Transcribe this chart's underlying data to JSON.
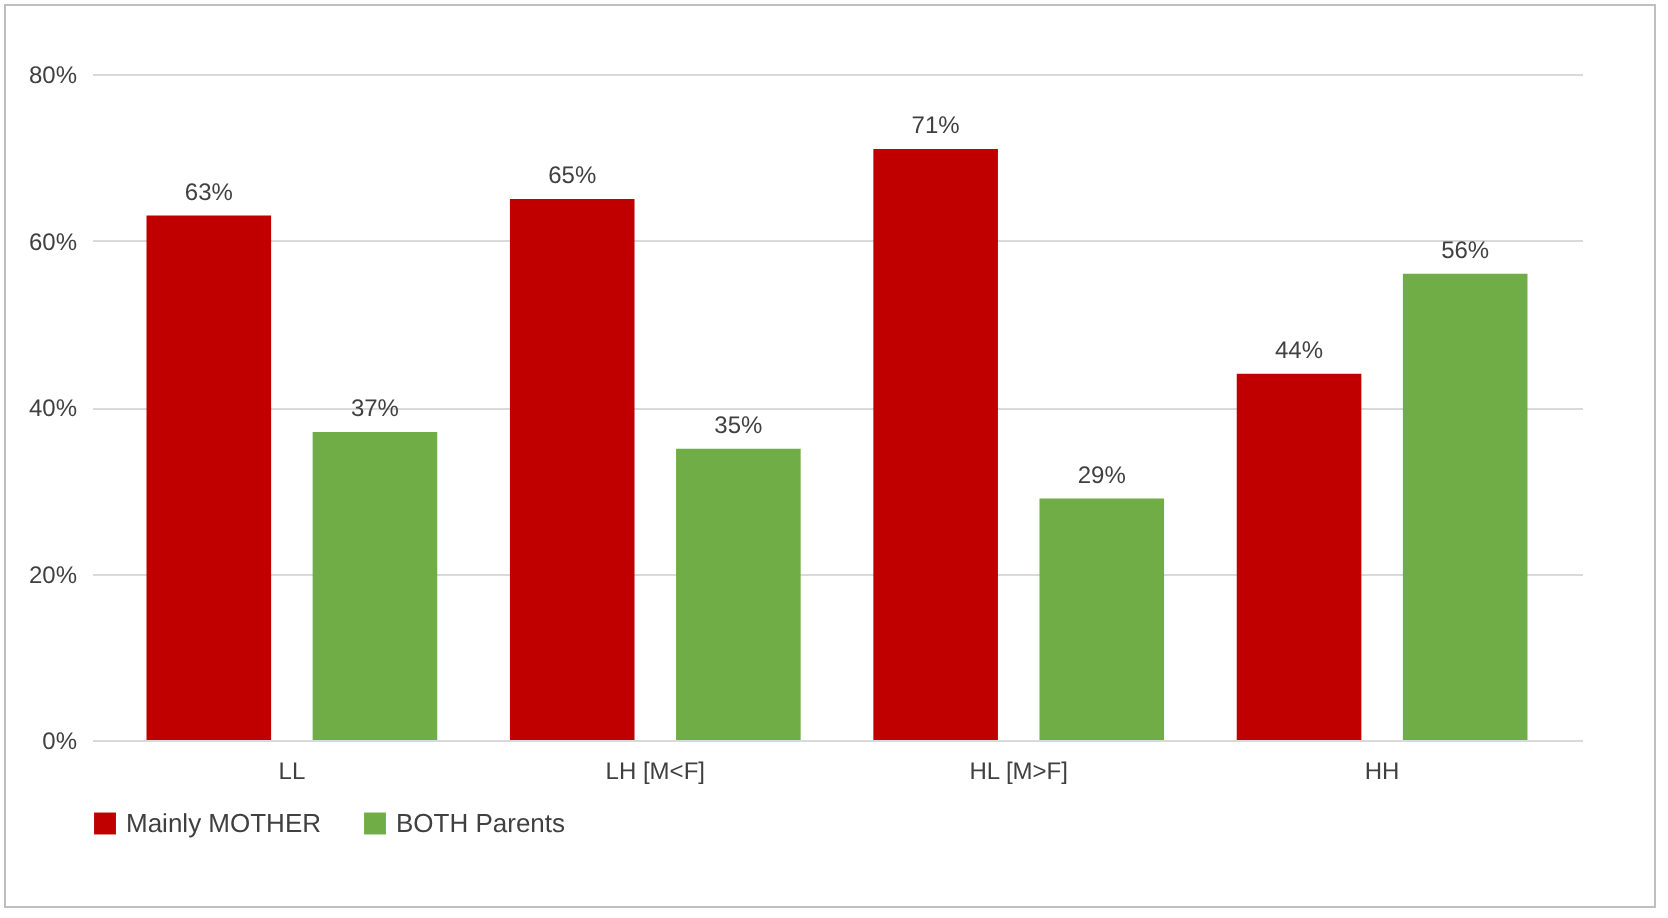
{
  "chart_data": {
    "type": "bar",
    "categories": [
      "LL",
      "LH [M<F]",
      "HL [M>F]",
      "HH"
    ],
    "series": [
      {
        "name": "Mainly MOTHER",
        "color": "#c00000",
        "values": [
          63,
          65,
          71,
          44
        ],
        "value_labels": [
          "63%",
          "65%",
          "71%",
          "44%"
        ]
      },
      {
        "name": "BOTH Parents",
        "color": "#70ad47",
        "values": [
          37,
          35,
          29,
          56
        ],
        "value_labels": [
          "37%",
          "35%",
          "29%",
          "56%"
        ]
      }
    ],
    "ylim": [
      0,
      80
    ],
    "yticks": [
      {
        "value": 0,
        "label": "0%"
      },
      {
        "value": 20,
        "label": "20%"
      },
      {
        "value": 40,
        "label": "40%"
      },
      {
        "value": 60,
        "label": "60%"
      },
      {
        "value": 80,
        "label": "80%"
      }
    ],
    "grid": "y",
    "legend": "bottom"
  }
}
